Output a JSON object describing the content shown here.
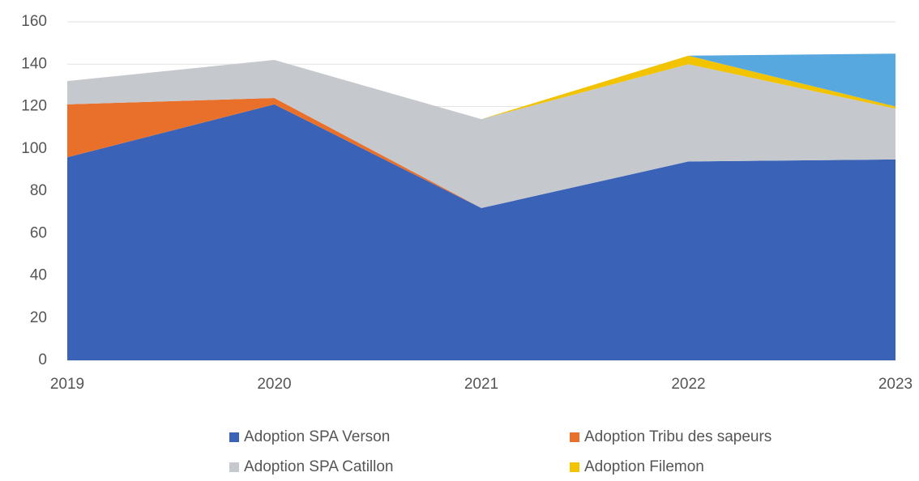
{
  "chart_data": {
    "type": "stacked_area",
    "x": [
      "2019",
      "2020",
      "2021",
      "2022",
      "2023"
    ],
    "series": [
      {
        "name": "Adoption SPA Verson",
        "color": "#3a63b8",
        "values": [
          96,
          121,
          72,
          94,
          95
        ]
      },
      {
        "name": "Adoption Tribu des sapeurs",
        "color": "#e8702a",
        "values": [
          25,
          3,
          0,
          0,
          0
        ]
      },
      {
        "name": "Adoption SPA Catillon",
        "color": "#c5c8cc",
        "values": [
          11,
          18,
          42,
          46,
          24
        ]
      },
      {
        "name": "Adoption Filemon",
        "color": "#f2c300",
        "values": [
          0,
          0,
          0,
          4,
          1
        ]
      },
      {
        "color": "#58a8e0",
        "values": [
          0,
          0,
          0,
          0,
          25
        ]
      }
    ],
    "ylim": [
      0,
      160
    ],
    "yticks": [
      0,
      20,
      40,
      60,
      80,
      100,
      120,
      140,
      160
    ],
    "grid": true
  }
}
